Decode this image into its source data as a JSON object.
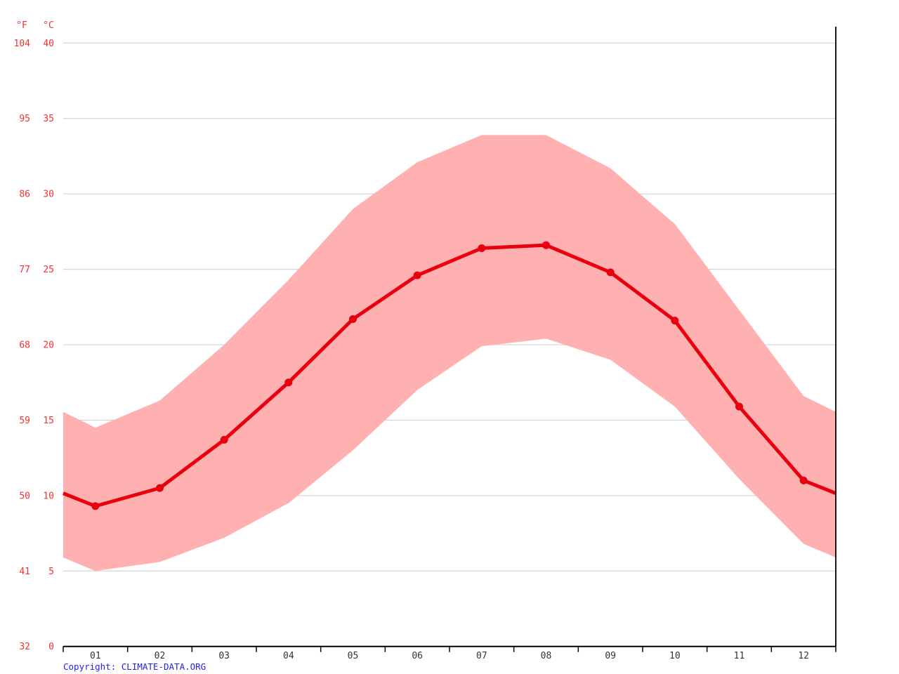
{
  "chart_data": {
    "type": "line",
    "title": "",
    "months": [
      "01",
      "02",
      "03",
      "04",
      "05",
      "06",
      "07",
      "08",
      "09",
      "10",
      "11",
      "12"
    ],
    "series": [
      {
        "name": "mean_temperature_c",
        "values": [
          9.3,
          10.5,
          13.7,
          17.5,
          21.7,
          24.6,
          26.4,
          26.6,
          24.8,
          21.6,
          15.9,
          11.0
        ]
      },
      {
        "name": "max_temperature_c",
        "values": [
          14.5,
          16.3,
          20.0,
          24.3,
          29.0,
          32.1,
          33.9,
          33.9,
          31.7,
          28.0,
          22.3,
          16.6
        ]
      },
      {
        "name": "min_temperature_c",
        "values": [
          5.0,
          5.6,
          7.2,
          9.5,
          13.0,
          17.0,
          19.9,
          20.4,
          19.0,
          15.9,
          11.1,
          6.8
        ]
      }
    ],
    "y_axis": {
      "unit_left": "°F",
      "unit_right": "°C",
      "rows": [
        {
          "f": "104",
          "c": "40",
          "value": 40
        },
        {
          "f": "95",
          "c": "35",
          "value": 35
        },
        {
          "f": "86",
          "c": "30",
          "value": 30
        },
        {
          "f": "77",
          "c": "25",
          "value": 25
        },
        {
          "f": "68",
          "c": "20",
          "value": 20
        },
        {
          "f": "59",
          "c": "15",
          "value": 15
        },
        {
          "f": "50",
          "c": "10",
          "value": 10
        },
        {
          "f": "41",
          "c": "5",
          "value": 5
        },
        {
          "f": "32",
          "c": "0",
          "value": 0
        }
      ],
      "range_c": [
        0,
        40
      ]
    },
    "grid": true,
    "legend": false,
    "band_meaning": "min-max temperature range"
  },
  "colors": {
    "line": "#e8000f",
    "band": "#ffb1b1",
    "axis_label": "#ee3333",
    "month_label": "#333333",
    "gridline": "#cccccc",
    "axis": "#000000",
    "copyright": "#2222e6",
    "background": "#ffffff"
  },
  "copyright": {
    "label": "Copyright: CLIMATE-DATA.ORG"
  }
}
